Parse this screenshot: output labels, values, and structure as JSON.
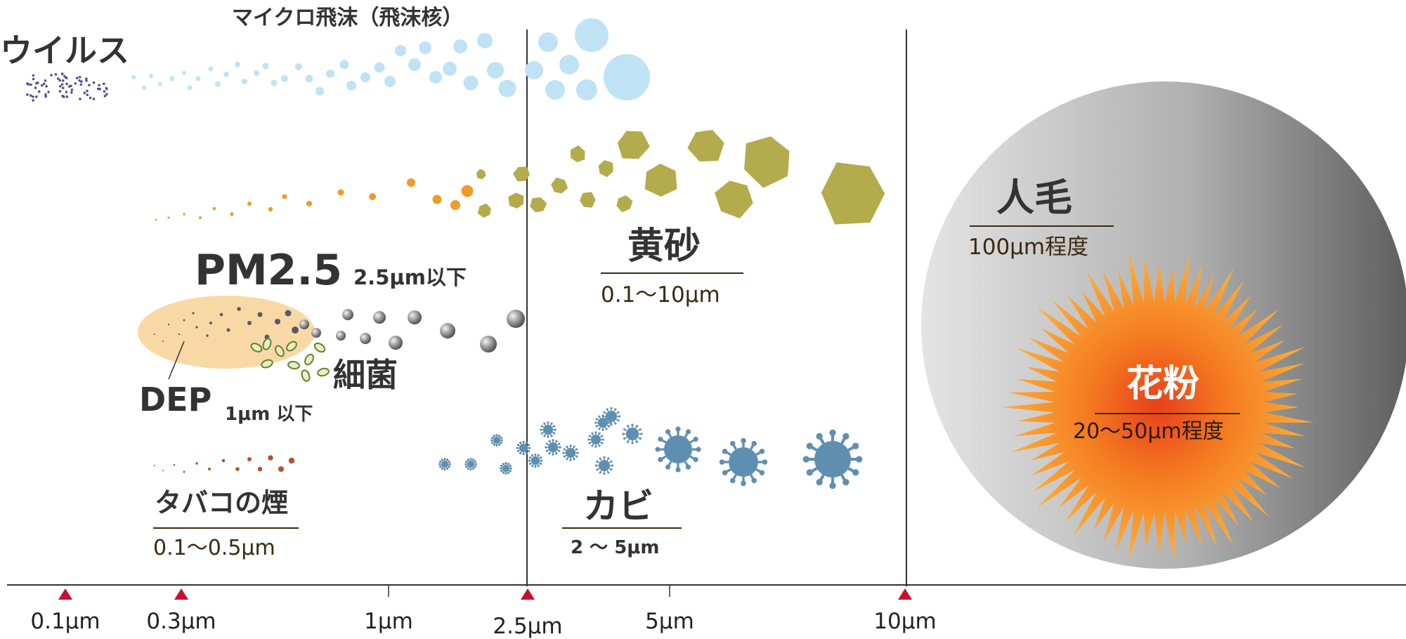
{
  "labels": {
    "micro_droplet": "マイクロ飛沫（飛沫核）",
    "virus": "ウイルス",
    "pm25_title": "PM2.5",
    "pm25_note": "2.5μm以下",
    "bacteria": "細菌",
    "dep_title": "DEP",
    "dep_note": "1μm 以下",
    "sand_title": "黄砂",
    "sand_range": "0.1〜10μm",
    "hair_title": "人毛",
    "hair_range": "100μm程度",
    "pollen_title": "花粉",
    "pollen_range": "20〜50μm程度",
    "smoke_title": "タバコの煙",
    "smoke_range": "0.1〜0.5μm",
    "mold_title": "カビ",
    "mold_range": "2 〜 5μm"
  },
  "axis": {
    "ticks": [
      {
        "label": "0.1μm",
        "marker": "triangle"
      },
      {
        "label": "0.3μm",
        "marker": "triangle"
      },
      {
        "label": "1μm",
        "marker": "tick"
      },
      {
        "label": "2.5μm",
        "marker": "triangle"
      },
      {
        "label": "5μm",
        "marker": "tick"
      },
      {
        "label": "10μm",
        "marker": "triangle"
      }
    ]
  },
  "colors": {
    "droplet": "#bfe3f5",
    "virus_dots": "#55508a",
    "sand": "#b3ab4c",
    "sand_small": "#f09a28",
    "pm_ellipse": "#f8d9a6",
    "pm_sphere": "#8c8c8c",
    "bacteria": "#6b7d2c",
    "smoke": "#b5532a",
    "mold": "#5f8fb0",
    "pollen": "#f7931e",
    "hair_light": "#dcdcdc",
    "hair_dark": "#6a6a6a",
    "marker": "#c8102e",
    "line": "#333333"
  }
}
